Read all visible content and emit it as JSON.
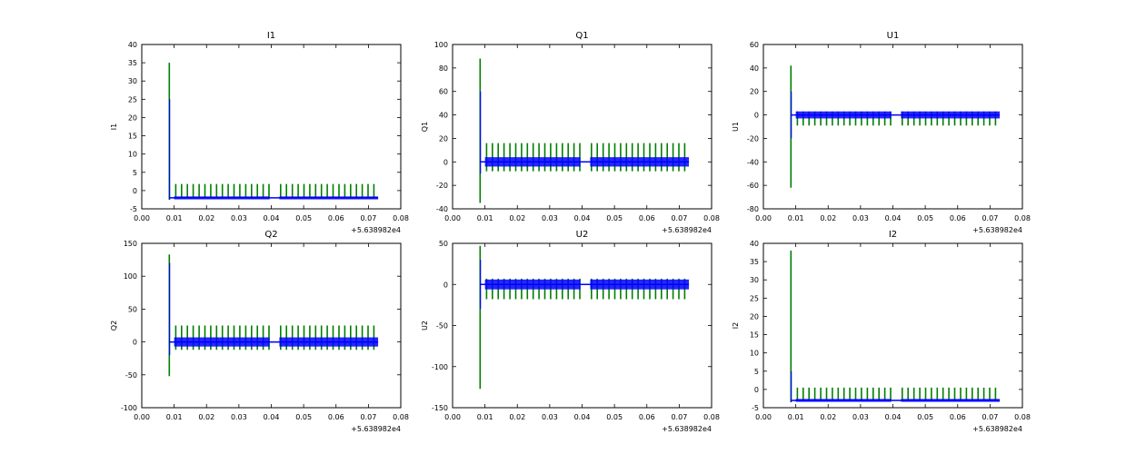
{
  "colors": {
    "series_blue": "#0000ff",
    "series_green": "#007f00"
  },
  "chart_data": [
    {
      "type": "line",
      "title": "I1",
      "xlabel": "",
      "ylabel": "I1",
      "x_offset_label": "+5.638982e4",
      "xlim": [
        0.0,
        0.08
      ],
      "ylim": [
        -5,
        40
      ],
      "xticks": [
        "0.00",
        "0.01",
        "0.02",
        "0.03",
        "0.04",
        "0.05",
        "0.06",
        "0.07",
        "0.08"
      ],
      "yticks": [
        "-5",
        "0",
        "5",
        "10",
        "15",
        "20",
        "25",
        "30",
        "35",
        "40"
      ],
      "series": [
        {
          "name": "blue",
          "color": "#0000ff",
          "baseline": -2.0,
          "band": 0.4,
          "spike_max": 25,
          "spike_min": -2.5
        },
        {
          "name": "green",
          "color": "#007f00",
          "baseline": -2.0,
          "burst_max": 1.8,
          "burst_min": -2.0,
          "spike_max": 35,
          "spike_min": -2.5
        }
      ]
    },
    {
      "type": "line",
      "title": "Q1",
      "xlabel": "",
      "ylabel": "Q1",
      "x_offset_label": "+5.638982e4",
      "xlim": [
        0.0,
        0.08
      ],
      "ylim": [
        -40,
        100
      ],
      "xticks": [
        "0.00",
        "0.01",
        "0.02",
        "0.03",
        "0.04",
        "0.05",
        "0.06",
        "0.07",
        "0.08"
      ],
      "yticks": [
        "-40",
        "-20",
        "0",
        "20",
        "40",
        "60",
        "80",
        "100"
      ],
      "series": [
        {
          "name": "blue",
          "color": "#0000ff",
          "baseline": 0.0,
          "band": 4.0,
          "spike_max": 60,
          "spike_min": -10
        },
        {
          "name": "green",
          "color": "#007f00",
          "baseline": 0.0,
          "burst_max": 16,
          "burst_min": -8,
          "spike_max": 88,
          "spike_min": -35
        }
      ]
    },
    {
      "type": "line",
      "title": "U1",
      "xlabel": "",
      "ylabel": "U1",
      "x_offset_label": "+5.638982e4",
      "xlim": [
        0.0,
        0.08
      ],
      "ylim": [
        -80,
        60
      ],
      "xticks": [
        "0.00",
        "0.01",
        "0.02",
        "0.03",
        "0.04",
        "0.05",
        "0.06",
        "0.07",
        "0.08"
      ],
      "yticks": [
        "-80",
        "-60",
        "-40",
        "-20",
        "0",
        "20",
        "40",
        "60"
      ],
      "series": [
        {
          "name": "blue",
          "color": "#0000ff",
          "baseline": 0.0,
          "band": 3.0,
          "spike_max": 20,
          "spike_min": -20
        },
        {
          "name": "green",
          "color": "#007f00",
          "baseline": 0.0,
          "burst_max": 3,
          "burst_min": -9,
          "spike_max": 42,
          "spike_min": -62
        }
      ]
    },
    {
      "type": "line",
      "title": "Q2",
      "xlabel": "",
      "ylabel": "Q2",
      "x_offset_label": "+5.638982e4",
      "xlim": [
        0.0,
        0.08
      ],
      "ylim": [
        -100,
        150
      ],
      "xticks": [
        "0.00",
        "0.01",
        "0.02",
        "0.03",
        "0.04",
        "0.05",
        "0.06",
        "0.07",
        "0.08"
      ],
      "yticks": [
        "-100",
        "-50",
        "0",
        "50",
        "100",
        "150"
      ],
      "series": [
        {
          "name": "blue",
          "color": "#0000ff",
          "baseline": 0.0,
          "band": 7.0,
          "spike_max": 120,
          "spike_min": -20
        },
        {
          "name": "green",
          "color": "#007f00",
          "baseline": 0.0,
          "burst_max": 25,
          "burst_min": -12,
          "spike_max": 133,
          "spike_min": -52
        }
      ]
    },
    {
      "type": "line",
      "title": "U2",
      "xlabel": "",
      "ylabel": "U2",
      "x_offset_label": "+5.638982e4",
      "xlim": [
        0.0,
        0.08
      ],
      "ylim": [
        -150,
        50
      ],
      "xticks": [
        "0.00",
        "0.01",
        "0.02",
        "0.03",
        "0.04",
        "0.05",
        "0.06",
        "0.07",
        "0.08"
      ],
      "yticks": [
        "-150",
        "-100",
        "-50",
        "0",
        "50"
      ],
      "series": [
        {
          "name": "blue",
          "color": "#0000ff",
          "baseline": 0.0,
          "band": 6.0,
          "spike_max": 30,
          "spike_min": -30
        },
        {
          "name": "green",
          "color": "#007f00",
          "baseline": 0.0,
          "burst_max": 7,
          "burst_min": -18,
          "spike_max": 47,
          "spike_min": -127
        }
      ]
    },
    {
      "type": "line",
      "title": "I2",
      "xlabel": "",
      "ylabel": "I2",
      "x_offset_label": "+5.638982e4",
      "xlim": [
        0.0,
        0.08
      ],
      "ylim": [
        -5,
        40
      ],
      "xticks": [
        "0.00",
        "0.01",
        "0.02",
        "0.03",
        "0.04",
        "0.05",
        "0.06",
        "0.07",
        "0.08"
      ],
      "yticks": [
        "-5",
        "0",
        "5",
        "10",
        "15",
        "20",
        "25",
        "30",
        "35",
        "40"
      ],
      "series": [
        {
          "name": "blue",
          "color": "#0000ff",
          "baseline": -3.0,
          "band": 0.4,
          "spike_max": 5,
          "spike_min": -3.5
        },
        {
          "name": "green",
          "color": "#007f00",
          "baseline": -3.0,
          "burst_max": 0.5,
          "burst_min": -3.0,
          "spike_max": 38,
          "spike_min": -3.5
        }
      ]
    }
  ],
  "signal": {
    "spike_x": 0.0085,
    "start_x": 0.0085,
    "end_x": 0.073,
    "gap_start_x": 0.0395,
    "gap_end_x": 0.0425,
    "burst_period": 0.0018
  }
}
